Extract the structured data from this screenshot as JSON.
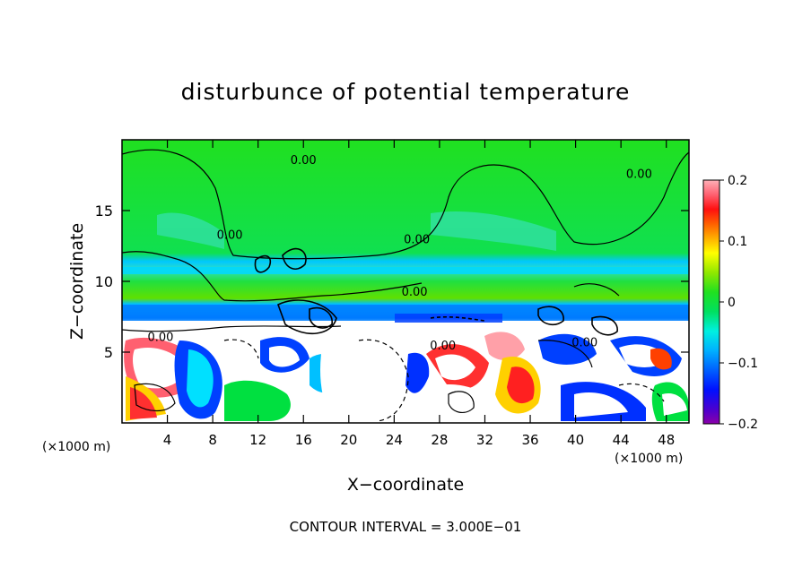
{
  "chart_data": {
    "type": "heatmap",
    "title": "disturbunce of potential temperature",
    "xlabel": "X−coordinate",
    "ylabel": "Z−coordinate",
    "x_unit": "(×1000 m)",
    "y_unit": "(×1000 m)",
    "xlim": [
      0,
      50
    ],
    "ylim": [
      0,
      20
    ],
    "x_ticks": [
      4,
      8,
      12,
      16,
      20,
      24,
      28,
      32,
      36,
      40,
      44,
      48
    ],
    "y_ticks": [
      5,
      10,
      15
    ],
    "colorbar": {
      "range": [
        -0.2,
        0.2
      ],
      "tick_values": [
        0.2,
        0.1,
        0,
        -0.1,
        -0.2
      ],
      "tick_labels": [
        "0.2",
        "0.1",
        "0",
        "−0.1",
        "−0.2"
      ],
      "colors": [
        "#8b00a8",
        "#5a00c8",
        "#2000e0",
        "#0030ff",
        "#0070ff",
        "#00a8ff",
        "#00d8ff",
        "#00ffd8",
        "#00e890",
        "#00e040",
        "#30e020",
        "#80e000",
        "#c0f000",
        "#ffff00",
        "#ffc000",
        "#ff9000",
        "#ff5000",
        "#ff1010",
        "#ff6070",
        "#ffa0a8"
      ]
    },
    "contour_labels": [
      {
        "text": "0.00",
        "x": 16.0,
        "z": 18.3
      },
      {
        "text": "0.00",
        "x": 45.6,
        "z": 17.3
      },
      {
        "text": "0.00",
        "x": 9.5,
        "z": 13.0
      },
      {
        "text": "0.00",
        "x": 26.0,
        "z": 12.7
      },
      {
        "text": "0.00",
        "x": 25.8,
        "z": 9.0
      },
      {
        "text": "0.00",
        "x": 3.4,
        "z": 5.8
      },
      {
        "text": "0.00",
        "x": 28.3,
        "z": 5.2
      },
      {
        "text": "0.00",
        "x": 40.8,
        "z": 5.4
      }
    ],
    "contour_interval_text": "CONTOUR INTERVAL = 3.000E−01"
  }
}
